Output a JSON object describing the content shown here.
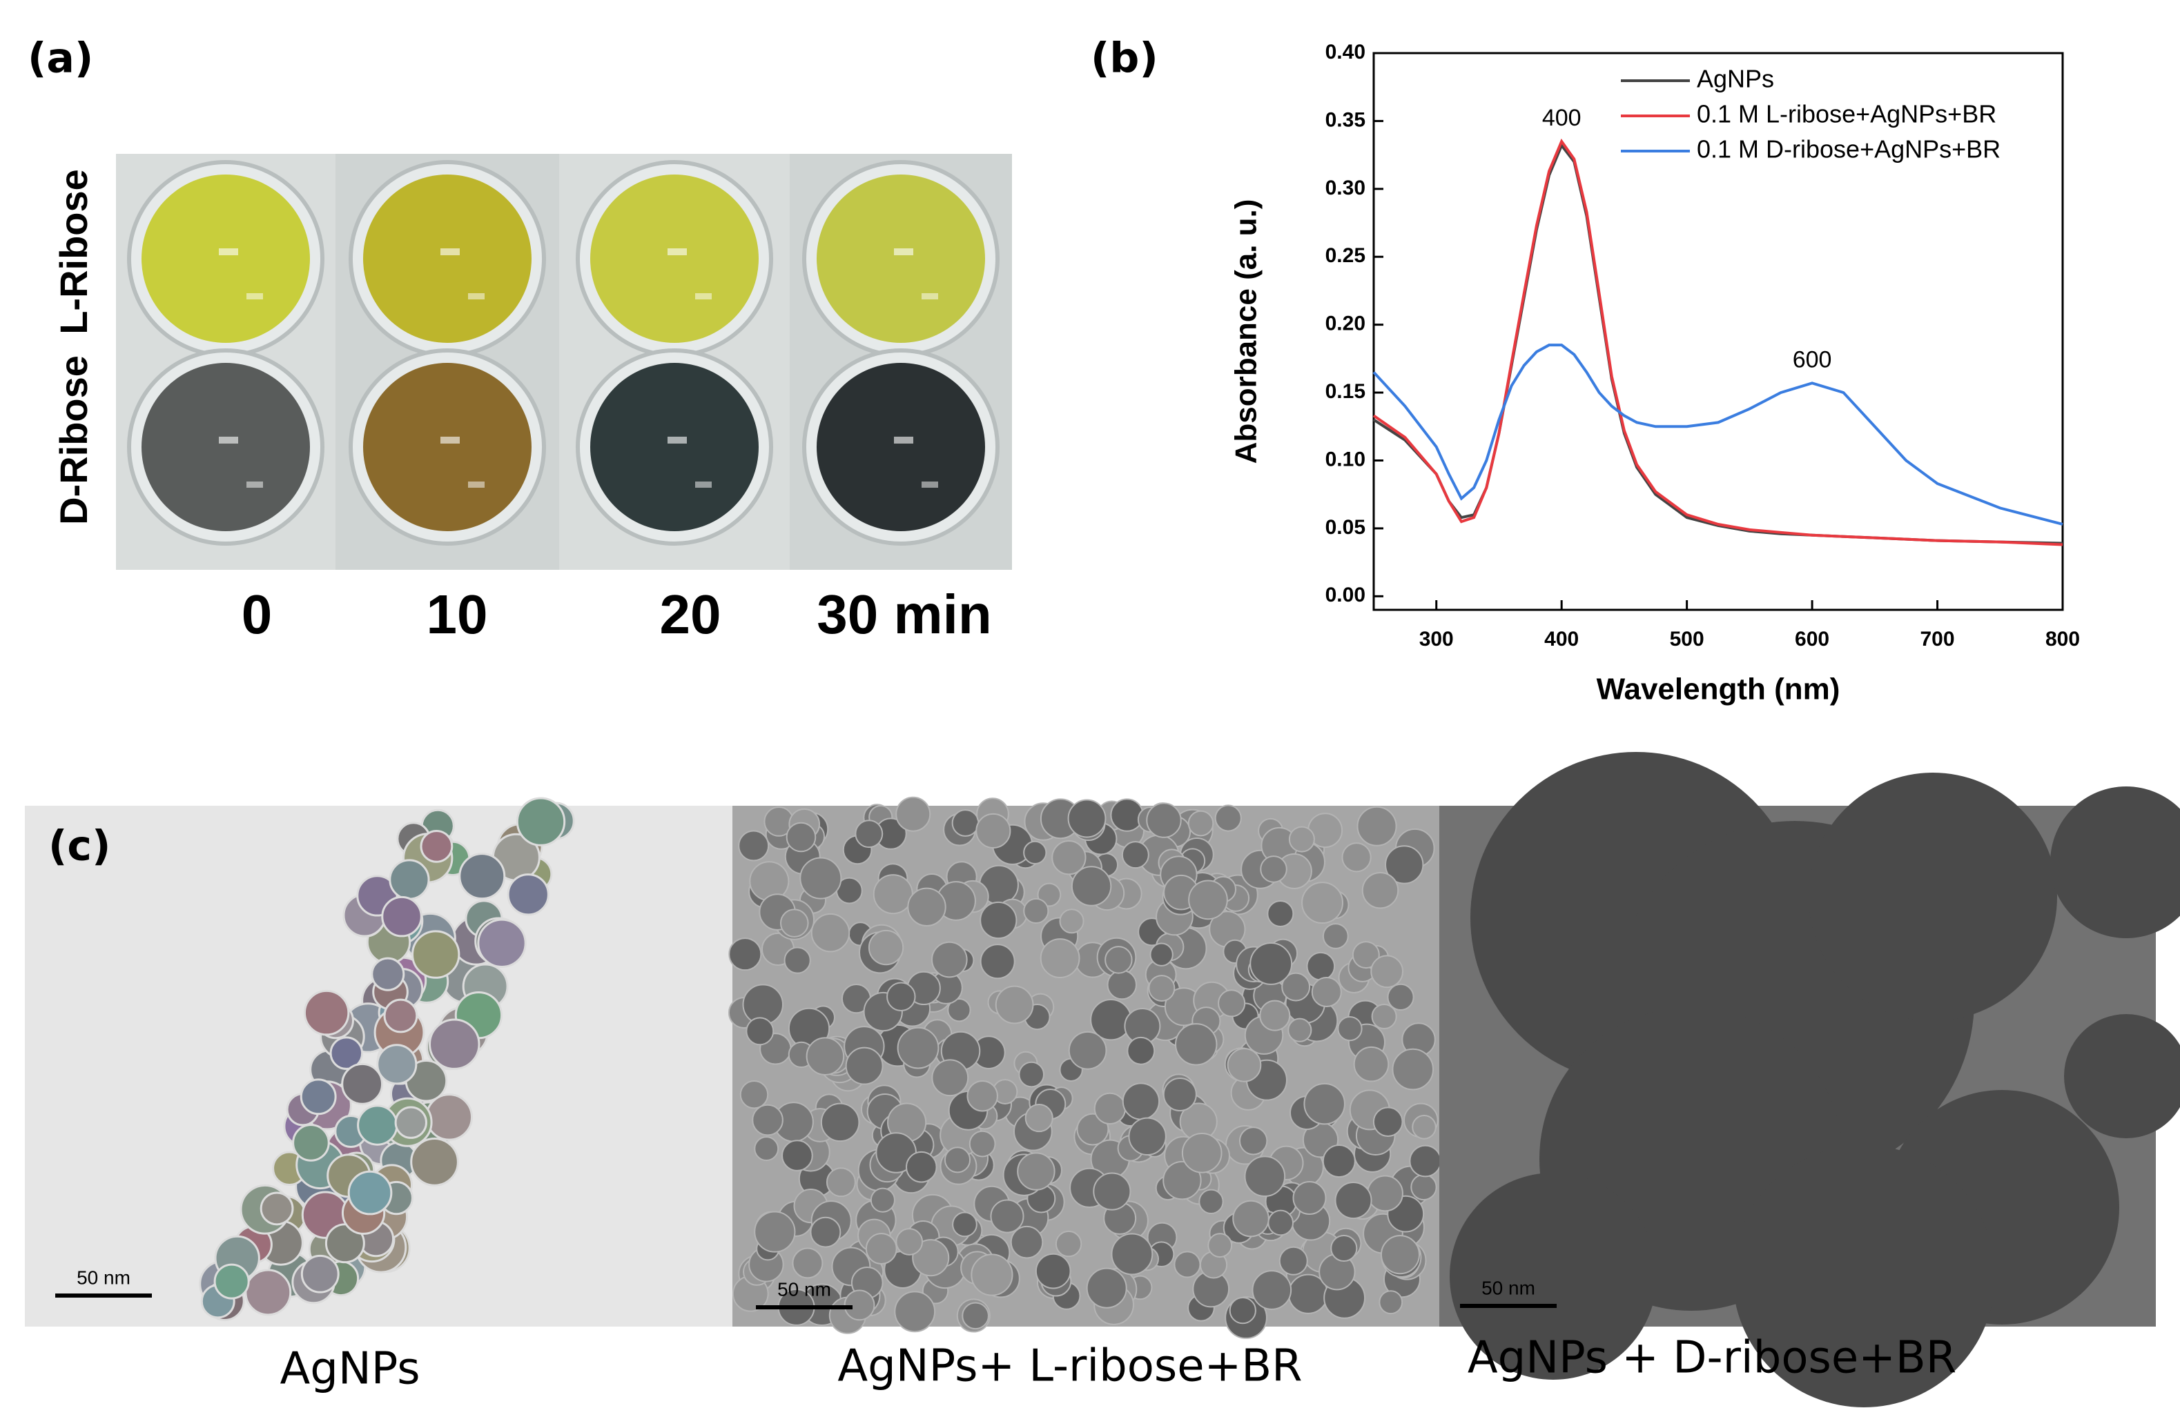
{
  "panel_labels": [
    "(a)",
    "(b)",
    "(c)"
  ],
  "panel_a": {
    "rows": [
      "L-Ribose",
      "D-Ribose"
    ],
    "times": [
      "0",
      "10",
      "20",
      "30 min"
    ]
  },
  "chart_data": {
    "type": "line",
    "xlabel": "Wavelength (nm)",
    "ylabel": "Absorbance (a. u.)",
    "x": [
      250,
      275,
      300,
      310,
      320,
      330,
      340,
      350,
      360,
      370,
      380,
      390,
      400,
      410,
      420,
      430,
      440,
      450,
      460,
      475,
      500,
      525,
      550,
      575,
      600,
      625,
      650,
      675,
      700,
      750,
      800
    ],
    "series": [
      {
        "name": "AgNPs",
        "color": "#444444",
        "values": [
          0.13,
          0.115,
          0.09,
          0.07,
          0.058,
          0.06,
          0.08,
          0.12,
          0.17,
          0.22,
          0.27,
          0.31,
          0.332,
          0.32,
          0.28,
          0.22,
          0.16,
          0.12,
          0.095,
          0.075,
          0.058,
          0.052,
          0.048,
          0.046,
          0.045,
          0.044,
          0.043,
          0.042,
          0.041,
          0.04,
          0.039
        ]
      },
      {
        "name": "0.1 M L-ribose+AgNPs+BR",
        "color": "#e8393f",
        "values": [
          0.133,
          0.117,
          0.09,
          0.07,
          0.055,
          0.058,
          0.08,
          0.12,
          0.172,
          0.223,
          0.273,
          0.313,
          0.335,
          0.322,
          0.283,
          0.223,
          0.162,
          0.122,
          0.097,
          0.077,
          0.06,
          0.053,
          0.049,
          0.047,
          0.045,
          0.044,
          0.043,
          0.042,
          0.041,
          0.04,
          0.038
        ]
      },
      {
        "name": "0.1 M D-ribose+AgNPs+BR",
        "color": "#3a7de0",
        "values": [
          0.165,
          0.14,
          0.11,
          0.09,
          0.072,
          0.08,
          0.1,
          0.13,
          0.155,
          0.17,
          0.18,
          0.185,
          0.185,
          0.178,
          0.165,
          0.15,
          0.14,
          0.133,
          0.128,
          0.125,
          0.125,
          0.128,
          0.138,
          0.15,
          0.157,
          0.15,
          0.125,
          0.1,
          0.083,
          0.065,
          0.053
        ]
      }
    ],
    "annotations": [
      {
        "text": "400",
        "x": 400,
        "y": 0.335
      },
      {
        "text": "600",
        "x": 600,
        "y": 0.157
      }
    ],
    "xlim": [
      250,
      800
    ],
    "ylim": [
      -0.01,
      0.4
    ],
    "xticks": [
      300,
      400,
      500,
      600,
      700,
      800
    ],
    "yticks": [
      {
        "value": 0,
        "label": "0.00"
      },
      {
        "value": 0.05,
        "label": "0.05"
      },
      {
        "value": 0.1,
        "label": "0.10"
      },
      {
        "value": 0.15,
        "label": "0.15"
      },
      {
        "value": 0.2,
        "label": "0.20"
      },
      {
        "value": 0.25,
        "label": "0.25"
      },
      {
        "value": 0.3,
        "label": "0.30"
      },
      {
        "value": 0.35,
        "label": "0.35"
      },
      {
        "value": 0.4,
        "label": "0.40"
      }
    ],
    "legend": "upper right",
    "grid": false
  },
  "panel_c": {
    "captions": [
      "AgNPs",
      "AgNPs+ L-ribose+BR",
      "AgNPs + D-ribose+BR"
    ],
    "scale_bar": "50 nm"
  }
}
